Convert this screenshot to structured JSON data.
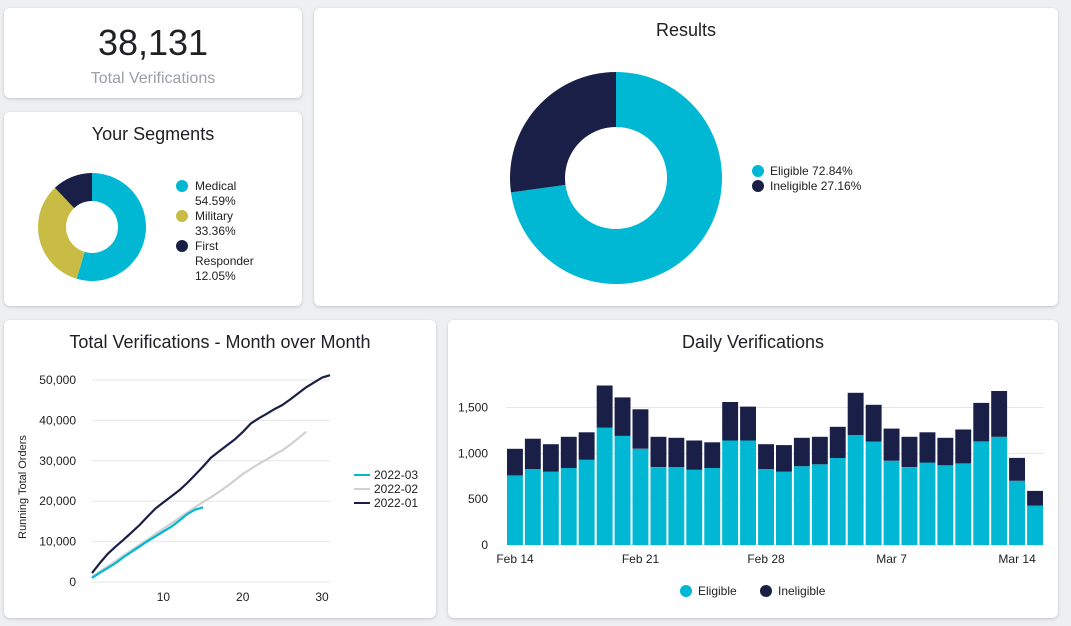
{
  "kpi": {
    "value": "38,131",
    "label": "Total Verifications"
  },
  "colors": {
    "eligible": "#00b8d4",
    "ineligible": "#1a1f47",
    "military": "#c8bc45",
    "line_2022_02": "#d0d0d0"
  },
  "segments": {
    "title": "Your Segments",
    "items": [
      {
        "name": "Medical",
        "pct": "54.59%",
        "value": 54.59,
        "color": "#00b8d4"
      },
      {
        "name": "Military",
        "pct": "33.36%",
        "value": 33.36,
        "color": "#c8bc45"
      },
      {
        "name": "First Responder",
        "line1": "First",
        "line2": "Responder",
        "pct": "12.05%",
        "value": 12.05,
        "color": "#1a1f47"
      }
    ]
  },
  "results": {
    "title": "Results",
    "items": [
      {
        "name": "Eligible",
        "label": "Eligible 72.84%",
        "value": 72.84,
        "color": "#00b8d4"
      },
      {
        "name": "Ineligible",
        "label": "Ineligible 27.16%",
        "value": 27.16,
        "color": "#1a1f47"
      }
    ]
  },
  "chart_data": [
    {
      "type": "pie",
      "title": "Your Segments",
      "labels": [
        "Medical",
        "Military",
        "First Responder"
      ],
      "values": [
        54.59,
        33.36,
        12.05
      ]
    },
    {
      "type": "pie",
      "title": "Results",
      "labels": [
        "Eligible",
        "Ineligible"
      ],
      "values": [
        72.84,
        27.16
      ]
    },
    {
      "type": "line",
      "title": "Total Verifications - Month over Month",
      "xlabel": "",
      "ylabel": "Running Total Orders",
      "xlim": [
        1,
        31
      ],
      "ylim": [
        0,
        50000
      ],
      "xticks": [
        10,
        20,
        30
      ],
      "yticks": [
        0,
        10000,
        20000,
        30000,
        40000,
        50000
      ],
      "ytick_labels": [
        "0",
        "10,000",
        "20,000",
        "30,000",
        "40,000",
        "50,000"
      ],
      "grid": true,
      "legend": "right",
      "series": [
        {
          "name": "2022-03",
          "color": "#00b8d4",
          "x": [
            1,
            2,
            3,
            4,
            5,
            6,
            7,
            8,
            9,
            10,
            11,
            12,
            13,
            14,
            15
          ],
          "y": [
            1000,
            2300,
            3500,
            4700,
            6200,
            7500,
            8800,
            10100,
            11300,
            12500,
            13700,
            15200,
            16800,
            17900,
            18500
          ]
        },
        {
          "name": "2022-02",
          "color": "#d0d0d0",
          "x": [
            1,
            2,
            3,
            4,
            5,
            6,
            7,
            8,
            9,
            10,
            11,
            12,
            13,
            14,
            15,
            16,
            17,
            18,
            19,
            20,
            21,
            22,
            23,
            24,
            25,
            26,
            27,
            28
          ],
          "y": [
            1300,
            2600,
            3900,
            5200,
            6600,
            7900,
            9200,
            10500,
            11900,
            13200,
            14500,
            15900,
            17200,
            18500,
            19800,
            21000,
            22300,
            23700,
            25200,
            26700,
            28000,
            29200,
            30300,
            31500,
            32600,
            34000,
            35600,
            37200
          ]
        },
        {
          "name": "2022-01",
          "color": "#1a1f47",
          "x": [
            1,
            2,
            3,
            4,
            5,
            6,
            7,
            8,
            9,
            10,
            11,
            12,
            13,
            14,
            15,
            16,
            17,
            18,
            19,
            20,
            21,
            22,
            23,
            24,
            25,
            26,
            27,
            28,
            29,
            30,
            31
          ],
          "y": [
            2200,
            4700,
            7000,
            8800,
            10500,
            12300,
            14100,
            16200,
            18200,
            19700,
            21200,
            22700,
            24500,
            26500,
            28600,
            30800,
            32300,
            33800,
            35300,
            37100,
            39200,
            40500,
            41600,
            42800,
            43800,
            45200,
            46700,
            48200,
            49400,
            50600,
            51200
          ]
        }
      ]
    },
    {
      "type": "bar",
      "stacked": true,
      "title": "Daily Verifications",
      "ylim": [
        0,
        1800
      ],
      "yticks": [
        0,
        500,
        1000,
        1500
      ],
      "ytick_labels": [
        "0",
        "500",
        "1,000",
        "1,500"
      ],
      "grid": true,
      "legend": "bottom",
      "categories": [
        "Feb 14",
        "Feb 15",
        "Feb 16",
        "Feb 17",
        "Feb 18",
        "Feb 19",
        "Feb 20",
        "Feb 21",
        "Feb 22",
        "Feb 23",
        "Feb 24",
        "Feb 25",
        "Feb 26",
        "Feb 27",
        "Feb 28",
        "Mar 1",
        "Mar 2",
        "Mar 3",
        "Mar 4",
        "Mar 5",
        "Mar 6",
        "Mar 7",
        "Mar 8",
        "Mar 9",
        "Mar 10",
        "Mar 11",
        "Mar 12",
        "Mar 13",
        "Mar 14",
        "Mar 15"
      ],
      "xtick_labels": [
        "Feb 14",
        "Feb 21",
        "Feb 28",
        "Mar 7",
        "Mar 14"
      ],
      "series": [
        {
          "name": "Eligible",
          "color": "#00b8d4",
          "values": [
            760,
            830,
            800,
            840,
            930,
            1280,
            1190,
            1050,
            850,
            850,
            820,
            840,
            1140,
            1140,
            830,
            800,
            860,
            880,
            950,
            1200,
            1130,
            920,
            850,
            900,
            870,
            890,
            1130,
            1180,
            700,
            430
          ]
        },
        {
          "name": "Ineligible",
          "color": "#1a1f47",
          "values": [
            290,
            330,
            300,
            340,
            300,
            460,
            420,
            430,
            330,
            320,
            320,
            280,
            420,
            370,
            270,
            290,
            310,
            300,
            340,
            460,
            400,
            350,
            330,
            330,
            300,
            370,
            420,
            500,
            250,
            160
          ]
        }
      ]
    }
  ]
}
